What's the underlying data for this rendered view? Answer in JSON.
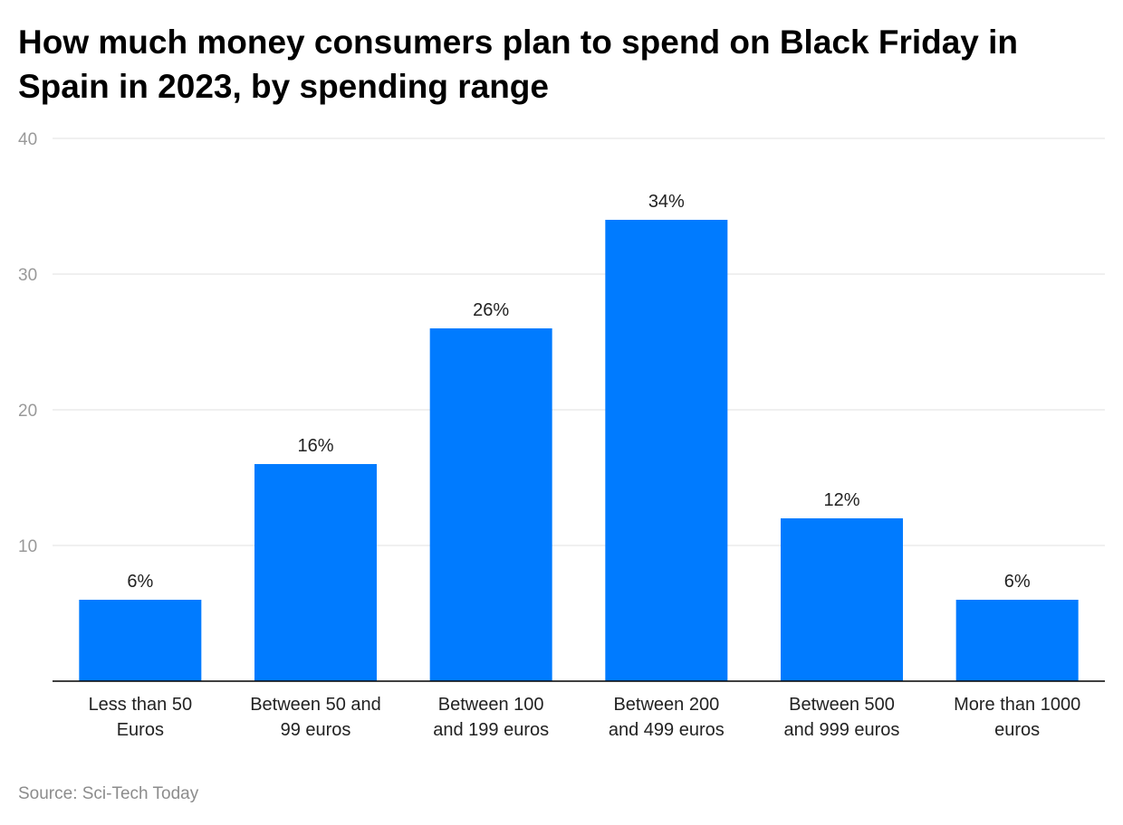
{
  "title": "How much money consumers plan to spend on Black Friday in Spain in 2023, by spending range",
  "source": "Source: Sci-Tech Today",
  "colors": {
    "bar": "#007BFF",
    "grid": "#e1e1e1",
    "tick": "#999999",
    "axis": "#000000"
  },
  "chart_data": {
    "type": "bar",
    "title": "How much money consumers plan to spend on Black Friday in Spain in 2023, by spending range",
    "categories": [
      [
        "Less than 50",
        "Euros"
      ],
      [
        "Between 50 and",
        "99 euros"
      ],
      [
        "Between 100",
        "and 199 euros"
      ],
      [
        "Between 200",
        "and 499 euros"
      ],
      [
        "Between 500",
        "and 999 euros"
      ],
      [
        "More than 1000",
        "euros"
      ]
    ],
    "values": [
      6,
      16,
      26,
      34,
      12,
      6
    ],
    "data_labels": [
      "6%",
      "16%",
      "26%",
      "34%",
      "12%",
      "6%"
    ],
    "yticks": [
      10,
      20,
      30,
      40
    ],
    "ylim": [
      0,
      40
    ],
    "grid": true,
    "xlabel": "",
    "ylabel": ""
  }
}
